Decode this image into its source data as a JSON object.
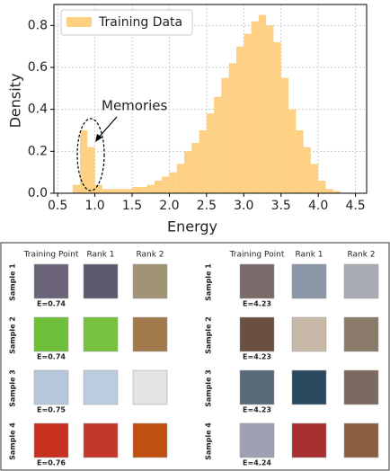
{
  "chart_data": {
    "type": "histogram",
    "xlabel": "Energy",
    "ylabel": "Density",
    "annotations": [
      {
        "text": "Memories"
      }
    ],
    "bins": [
      0.7,
      0.8,
      0.9,
      1.0,
      1.1,
      1.2,
      1.3,
      1.4,
      1.5,
      1.6,
      1.7,
      1.8,
      1.9,
      2.0,
      2.1,
      2.2,
      2.3,
      2.4,
      2.5,
      2.6,
      2.7,
      2.8,
      2.9,
      3.0,
      3.1,
      3.2,
      3.3,
      3.4,
      3.5,
      3.6,
      3.7,
      3.8,
      3.9,
      4.0,
      4.1,
      4.2,
      4.3
    ],
    "series": [
      {
        "name": "Training Data",
        "color": "#fdd084",
        "values": [
          0.04,
          0.3,
          0.22,
          0.04,
          0.02,
          0.02,
          0.02,
          0.02,
          0.03,
          0.03,
          0.04,
          0.06,
          0.08,
          0.1,
          0.14,
          0.2,
          0.24,
          0.3,
          0.38,
          0.46,
          0.55,
          0.62,
          0.7,
          0.76,
          0.82,
          0.85,
          0.8,
          0.72,
          0.55,
          0.4,
          0.3,
          0.22,
          0.14,
          0.06,
          0.02,
          0.01
        ]
      }
    ],
    "xlim": [
      0.45,
      4.65
    ],
    "ylim": [
      0,
      0.9
    ],
    "xticks": [
      {
        "value": 0.5,
        "label": "0.5"
      },
      {
        "value": 1,
        "label": "1.0"
      },
      {
        "value": 1.5,
        "label": "1.5"
      },
      {
        "value": 2,
        "label": "2.0"
      },
      {
        "value": 2.5,
        "label": "2.5"
      },
      {
        "value": 3,
        "label": "3.0"
      },
      {
        "value": 3.5,
        "label": "3.5"
      },
      {
        "value": 4,
        "label": "4.0"
      },
      {
        "value": 4.5,
        "label": "4.5"
      }
    ],
    "yticks": [
      {
        "value": 0,
        "label": "0.0"
      },
      {
        "value": 0.2,
        "label": "0.2"
      },
      {
        "value": 0.4,
        "label": "0.4"
      },
      {
        "value": 0.6,
        "label": "0.6"
      },
      {
        "value": 0.8,
        "label": "0.8"
      }
    ],
    "grid": true,
    "legend": "upper left"
  },
  "panels": [
    {
      "headers": [
        "Training Point",
        "Rank 1",
        "Rank 2"
      ],
      "samples": [
        {
          "label": "Sample 1",
          "energy": "E=0.74"
        },
        {
          "label": "Sample 2",
          "energy": "E=0.74"
        },
        {
          "label": "Sample 3",
          "energy": "E=0.75"
        },
        {
          "label": "Sample 4",
          "energy": "E=0.76"
        }
      ]
    },
    {
      "headers": [
        "Training Point",
        "Rank 1",
        "Rank 2"
      ],
      "samples": [
        {
          "label": "Sample 1",
          "energy": "E=4.23"
        },
        {
          "label": "Sample 2",
          "energy": "E=4.23"
        },
        {
          "label": "Sample 3",
          "energy": "E=4.23"
        },
        {
          "label": "Sample 4",
          "energy": "E=4.24"
        }
      ]
    }
  ]
}
